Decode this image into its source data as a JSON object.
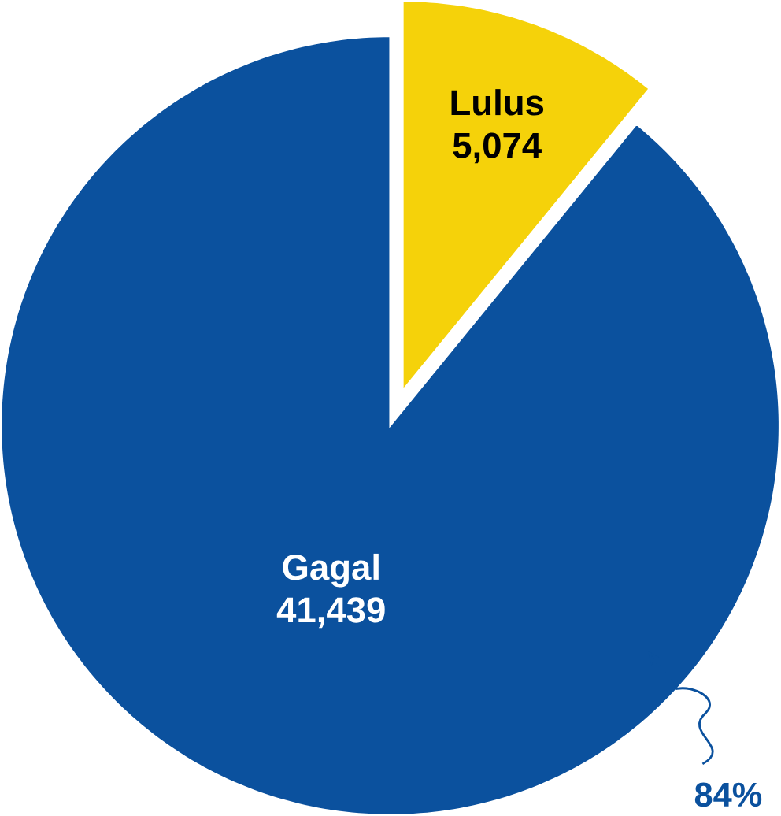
{
  "chart_data": {
    "type": "pie",
    "categories": [
      "Lulus",
      "Gagal"
    ],
    "values": [
      5074,
      41439
    ],
    "value_labels": [
      "5,074",
      "41,439"
    ],
    "colors": [
      "#f5d20a",
      "#0b519e"
    ],
    "annotations": [
      "84%"
    ]
  }
}
